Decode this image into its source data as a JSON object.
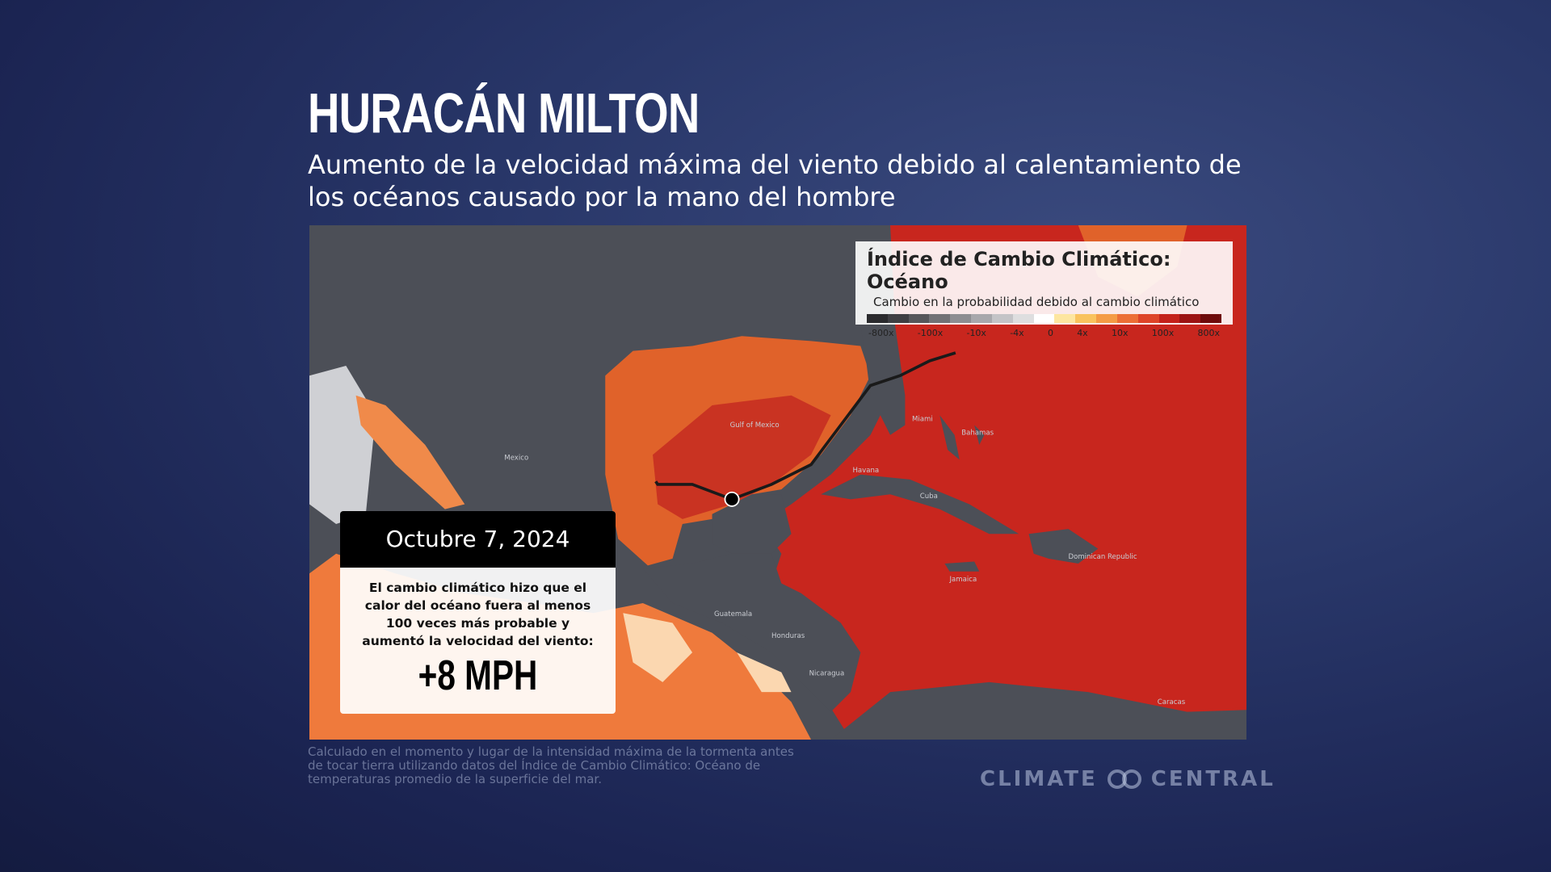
{
  "header": {
    "title": "HURACÁN MILTON",
    "subtitle": "Aumento de la velocidad máxima del viento debido al calentamiento de los océanos causado por la mano del hombre"
  },
  "legend": {
    "title": "Índice de Cambio Climático: Océano",
    "subtitle": "Cambio en la probabilidad debido al cambio climático",
    "colors": [
      "#2b2b2e",
      "#3f3f43",
      "#57575b",
      "#727276",
      "#8d8d91",
      "#a8a8ac",
      "#c4c4c7",
      "#dededf",
      "#ffffff",
      "#fde6a0",
      "#f9c35e",
      "#f49c46",
      "#ec6f36",
      "#de4429",
      "#c4221b",
      "#9c1414",
      "#6e0c0c"
    ],
    "labels": [
      "-800x",
      "-100x",
      "-10x",
      "-4x",
      "0",
      "4x",
      "10x",
      "100x",
      "800x"
    ]
  },
  "map": {
    "labels": [
      "Gulf of Mexico",
      "Cuba",
      "Miami",
      "Havana",
      "Bahamas",
      "Mexico",
      "Guatemala",
      "Honduras",
      "Nicaragua",
      "Jamaica",
      "Dominican Republic",
      "Caracas"
    ]
  },
  "callout": {
    "date": "Octubre 7, 2024",
    "text": "El cambio climático hizo que el calor del océano fuera al menos 100 veces más probable y aumentó la velocidad del viento:",
    "value": "+8 MPH"
  },
  "footnote": "Calculado en el momento y lugar de la intensidad máxima de la tormenta antes de tocar tierra utilizando datos del Índice de Cambio Climático: Océano de temperaturas promedio de la superficie del mar.",
  "logo": {
    "left": "CLIMATE",
    "right": "CENTRAL"
  }
}
